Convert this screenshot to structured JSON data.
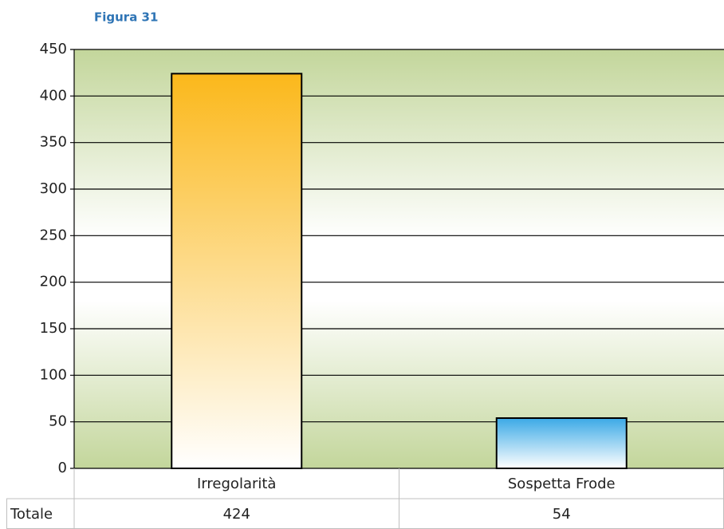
{
  "chart_data": {
    "type": "bar",
    "title": "Figura 31",
    "categories": [
      "Irregolarità",
      "Sospetta Frode"
    ],
    "series": [
      {
        "name": "Totale",
        "values": [
          424,
          54
        ],
        "colors": [
          "#fbb81b",
          "#3ba9e6"
        ]
      }
    ],
    "ylim": [
      0,
      450
    ],
    "yticks": [
      0,
      50,
      100,
      150,
      200,
      250,
      300,
      350,
      400,
      450
    ],
    "grid": true,
    "data_table": true
  }
}
